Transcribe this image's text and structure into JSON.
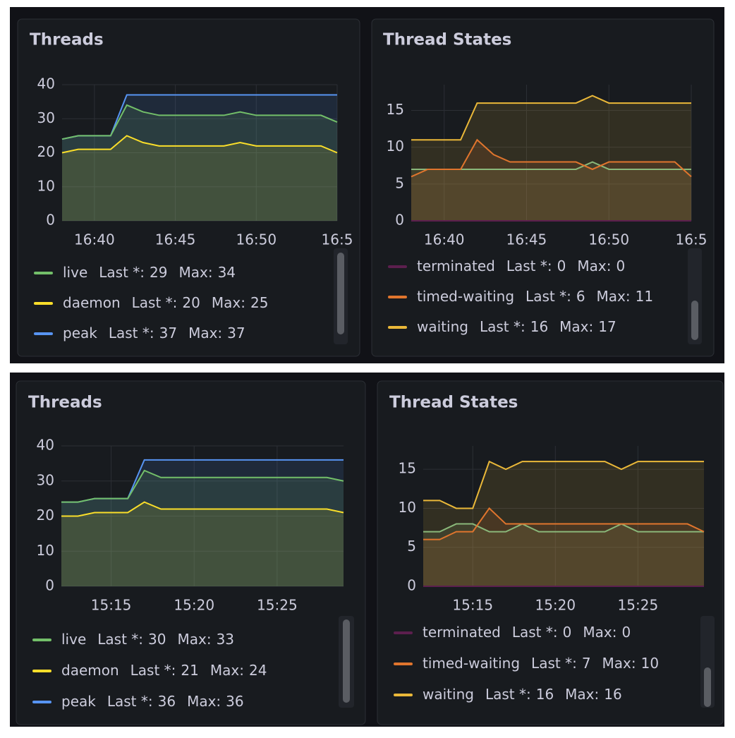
{
  "chart_data": [
    {
      "type": "line",
      "title": "Threads",
      "x": [
        "16:38",
        "16:39",
        "16:40",
        "16:41",
        "16:42",
        "16:43",
        "16:44",
        "16:45",
        "16:46",
        "16:47",
        "16:48",
        "16:49",
        "16:50",
        "16:51",
        "16:52",
        "16:53",
        "16:54",
        "16:55"
      ],
      "xticks": [
        "16:40",
        "16:45",
        "16:50",
        {
          "value": "16:55",
          "label": "16:5"
        }
      ],
      "ylim": [
        0,
        40
      ],
      "yticks": [
        0,
        10,
        20,
        30,
        40
      ],
      "grid": true,
      "series": [
        {
          "name": "live",
          "color": "#73bf69",
          "values": [
            24,
            25,
            25,
            25,
            34,
            32,
            31,
            31,
            31,
            31,
            31,
            32,
            31,
            31,
            31,
            31,
            31,
            29
          ],
          "stats": [
            {
              "label": "Last *:",
              "value": 29
            },
            {
              "label": "Max:",
              "value": 34
            }
          ]
        },
        {
          "name": "daemon",
          "color": "#fade2a",
          "values": [
            20,
            21,
            21,
            21,
            25,
            23,
            22,
            22,
            22,
            22,
            22,
            23,
            22,
            22,
            22,
            22,
            22,
            20
          ],
          "stats": [
            {
              "label": "Last *:",
              "value": 20
            },
            {
              "label": "Max:",
              "value": 25
            }
          ]
        },
        {
          "name": "peak",
          "color": "#5794f2",
          "values": [
            24,
            25,
            25,
            25,
            37,
            37,
            37,
            37,
            37,
            37,
            37,
            37,
            37,
            37,
            37,
            37,
            37,
            37
          ],
          "stats": [
            {
              "label": "Last *:",
              "value": 37
            },
            {
              "label": "Max:",
              "value": 37
            }
          ]
        }
      ]
    },
    {
      "type": "line",
      "title": "Thread States",
      "x": [
        "16:38",
        "16:39",
        "16:40",
        "16:41",
        "16:42",
        "16:43",
        "16:44",
        "16:45",
        "16:46",
        "16:47",
        "16:48",
        "16:49",
        "16:50",
        "16:51",
        "16:52",
        "16:53",
        "16:54",
        "16:55"
      ],
      "xticks": [
        "16:40",
        "16:45",
        "16:50",
        {
          "value": "16:55",
          "label": "16:5"
        }
      ],
      "ylim": [
        0,
        18.5
      ],
      "yticks": [
        0,
        5,
        10,
        15
      ],
      "grid": true,
      "series": [
        {
          "name": "terminated",
          "color": "#5c1f4e",
          "values": [
            0,
            0,
            0,
            0,
            0,
            0,
            0,
            0,
            0,
            0,
            0,
            0,
            0,
            0,
            0,
            0,
            0,
            0
          ],
          "stats": [
            {
              "label": "Last *:",
              "value": 0
            },
            {
              "label": "Max:",
              "value": 0
            }
          ]
        },
        {
          "name": "timed-waiting",
          "color": "#e0752d",
          "values": [
            6,
            7,
            7,
            7,
            11,
            9,
            8,
            8,
            8,
            8,
            8,
            7,
            8,
            8,
            8,
            8,
            8,
            6
          ],
          "stats": [
            {
              "label": "Last *:",
              "value": 6
            },
            {
              "label": "Max:",
              "value": 11
            }
          ]
        },
        {
          "name": "waiting",
          "color": "#eab839",
          "values": [
            11,
            11,
            11,
            11,
            16,
            16,
            16,
            16,
            16,
            16,
            16,
            17,
            16,
            16,
            16,
            16,
            16,
            16
          ],
          "stats": [
            {
              "label": "Last *:",
              "value": 16
            },
            {
              "label": "Max:",
              "value": 17
            }
          ]
        },
        {
          "color": "#8ab87a",
          "values": [
            7,
            7,
            7,
            7,
            7,
            7,
            7,
            7,
            7,
            7,
            7,
            8,
            7,
            7,
            7,
            7,
            7,
            7
          ]
        }
      ]
    },
    {
      "type": "line",
      "title": "Threads",
      "x": [
        "15:12",
        "15:13",
        "15:14",
        "15:15",
        "15:16",
        "15:17",
        "15:18",
        "15:19",
        "15:20",
        "15:21",
        "15:22",
        "15:23",
        "15:24",
        "15:25",
        "15:26",
        "15:27",
        "15:28",
        "15:29"
      ],
      "xticks": [
        "15:15",
        "15:20",
        "15:25"
      ],
      "ylim": [
        0,
        40
      ],
      "yticks": [
        0,
        10,
        20,
        30,
        40
      ],
      "grid": true,
      "series": [
        {
          "name": "live",
          "color": "#73bf69",
          "values": [
            24,
            24,
            25,
            25,
            25,
            33,
            31,
            31,
            31,
            31,
            31,
            31,
            31,
            31,
            31,
            31,
            31,
            30
          ],
          "stats": [
            {
              "label": "Last *:",
              "value": 30
            },
            {
              "label": "Max:",
              "value": 33
            }
          ]
        },
        {
          "name": "daemon",
          "color": "#fade2a",
          "values": [
            20,
            20,
            21,
            21,
            21,
            24,
            22,
            22,
            22,
            22,
            22,
            22,
            22,
            22,
            22,
            22,
            22,
            21
          ],
          "stats": [
            {
              "label": "Last *:",
              "value": 21
            },
            {
              "label": "Max:",
              "value": 24
            }
          ]
        },
        {
          "name": "peak",
          "color": "#5794f2",
          "values": [
            24,
            24,
            25,
            25,
            25,
            36,
            36,
            36,
            36,
            36,
            36,
            36,
            36,
            36,
            36,
            36,
            36,
            36
          ],
          "stats": [
            {
              "label": "Last *:",
              "value": 36
            },
            {
              "label": "Max:",
              "value": 36
            }
          ]
        }
      ]
    },
    {
      "type": "line",
      "title": "Thread States",
      "x": [
        "15:12",
        "15:13",
        "15:14",
        "15:15",
        "15:16",
        "15:17",
        "15:18",
        "15:19",
        "15:20",
        "15:21",
        "15:22",
        "15:23",
        "15:24",
        "15:25",
        "15:26",
        "15:27",
        "15:28",
        "15:29"
      ],
      "xticks": [
        "15:15",
        "15:20",
        "15:25"
      ],
      "ylim": [
        0,
        18
      ],
      "yticks": [
        0,
        5,
        10,
        15
      ],
      "grid": true,
      "series": [
        {
          "name": "terminated",
          "color": "#5c1f4e",
          "values": [
            0,
            0,
            0,
            0,
            0,
            0,
            0,
            0,
            0,
            0,
            0,
            0,
            0,
            0,
            0,
            0,
            0,
            0
          ],
          "stats": [
            {
              "label": "Last *:",
              "value": 0
            },
            {
              "label": "Max:",
              "value": 0
            }
          ]
        },
        {
          "name": "timed-waiting",
          "color": "#e0752d",
          "values": [
            6,
            6,
            7,
            7,
            10,
            8,
            8,
            8,
            8,
            8,
            8,
            8,
            8,
            8,
            8,
            8,
            8,
            7
          ],
          "stats": [
            {
              "label": "Last *:",
              "value": 7
            },
            {
              "label": "Max:",
              "value": 10
            }
          ]
        },
        {
          "name": "waiting",
          "color": "#eab839",
          "values": [
            11,
            11,
            10,
            10,
            16,
            15,
            16,
            16,
            16,
            16,
            16,
            16,
            15,
            16,
            16,
            16,
            16,
            16
          ],
          "stats": [
            {
              "label": "Last *:",
              "value": 16
            },
            {
              "label": "Max:",
              "value": 16
            }
          ]
        },
        {
          "color": "#8ab87a",
          "values": [
            7,
            7,
            8,
            8,
            7,
            7,
            8,
            7,
            7,
            7,
            7,
            7,
            8,
            7,
            7,
            7,
            7,
            7
          ]
        }
      ]
    }
  ]
}
